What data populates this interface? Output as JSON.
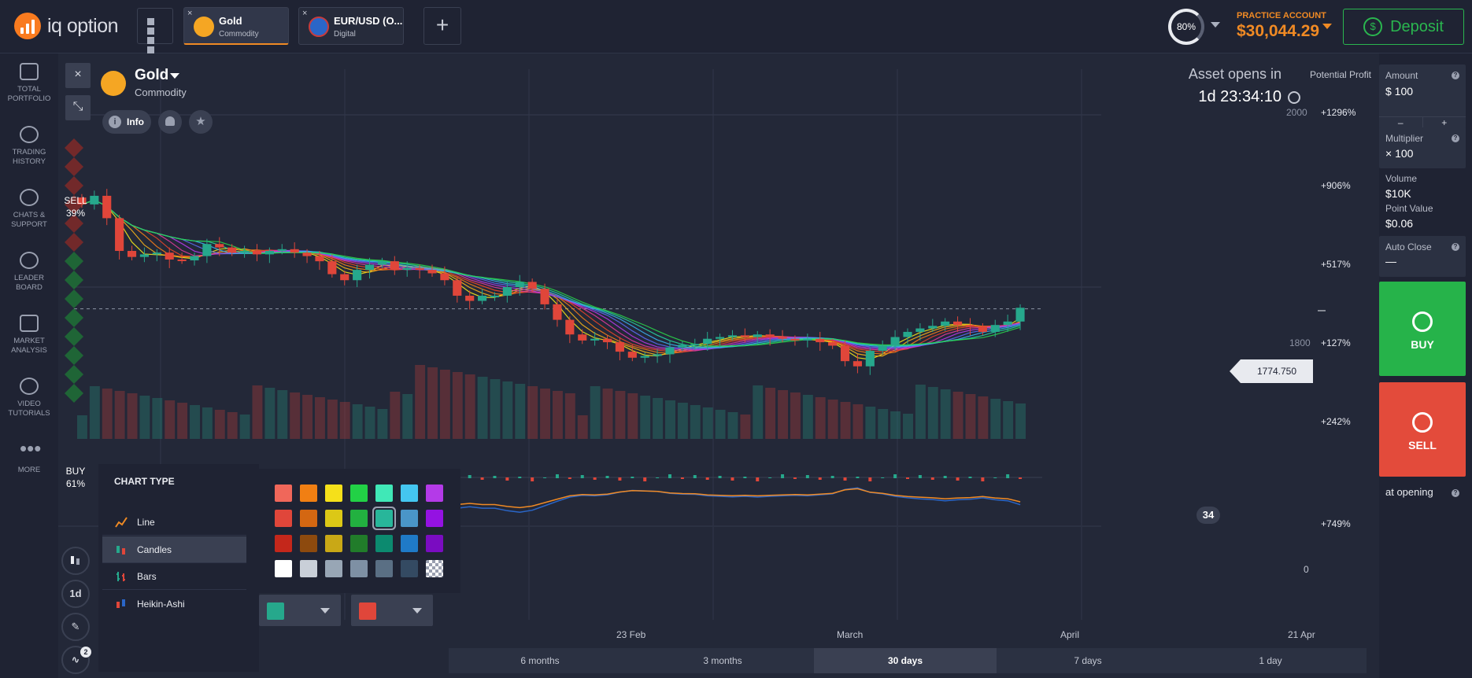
{
  "brand": {
    "name": "iq option"
  },
  "tabs": [
    {
      "close": "×",
      "name": "Gold",
      "sub": "Commodity",
      "icon": "gold-bars-icon"
    },
    {
      "close": "×",
      "name": "EUR/USD (O...",
      "sub": "Digital",
      "icon": "eurusd-flag-icon"
    }
  ],
  "header": {
    "add_tab": "+",
    "gauge_value": "80%",
    "account_label": "PRACTICE ACCOUNT",
    "account_balance": "$30,044.29",
    "deposit_label": "Deposit"
  },
  "nav": [
    {
      "label": "TOTAL PORTFOLIO",
      "icon": "briefcase-icon"
    },
    {
      "label": "TRADING HISTORY",
      "icon": "history-icon"
    },
    {
      "label": "CHATS & SUPPORT",
      "icon": "chat-icon"
    },
    {
      "label": "LEADER BOARD",
      "icon": "trophy-icon"
    },
    {
      "label": "MARKET ANALYSIS",
      "icon": "news-icon"
    },
    {
      "label": "VIDEO TUTORIALS",
      "icon": "play-icon"
    },
    {
      "label": "MORE",
      "icon": "more-dots-icon"
    }
  ],
  "asset": {
    "name": "Gold",
    "category": "Commodity",
    "info_label": "Info",
    "opens_label": "Asset opens in",
    "opens_time": "1d 23:34:10",
    "potential_profit": "Potential Profit"
  },
  "sentiment": {
    "sell_label": "SELL",
    "sell_pct": "39%",
    "buy_label": "BUY",
    "buy_pct": "61%"
  },
  "chart_data": {
    "type": "candlestick",
    "price_ticks": [
      "2000",
      "1800"
    ],
    "current_price": "1774.750",
    "profit_labels": [
      "+1296%",
      "+906%",
      "+517%",
      "+127%",
      "+242%",
      "+749%"
    ],
    "volume_badge": "34",
    "indicator_zero": "0",
    "time_labels": [
      "23 Feb",
      "March",
      "April",
      "21 Apr"
    ],
    "closes": [
      1896,
      1906,
      1880,
      1842,
      1835,
      1838,
      1840,
      1832,
      1831,
      1836,
      1850,
      1846,
      1840,
      1842,
      1838,
      1842,
      1844,
      1840,
      1836,
      1830,
      1815,
      1808,
      1820,
      1826,
      1830,
      1820,
      1822,
      1820,
      1816,
      1808,
      1790,
      1784,
      1790,
      1790,
      1800,
      1806,
      1798,
      1780,
      1762,
      1745,
      1738,
      1740,
      1736,
      1725,
      1718,
      1720,
      1722,
      1730,
      1733,
      1734,
      1740,
      1742,
      1744,
      1742,
      1745,
      1742,
      1740,
      1738,
      1740,
      1736,
      1732,
      1714,
      1708,
      1726,
      1732,
      1742,
      1748,
      1752,
      1755,
      1760,
      1756,
      1754,
      1748,
      1756,
      1760,
      1776
    ]
  },
  "timeframes": [
    "6 months",
    "3 months",
    "30 days",
    "7 days",
    "1 day"
  ],
  "timeframe_active": "30 days",
  "chart_type_menu": {
    "title": "CHART TYPE",
    "items": [
      "Line",
      "Candles",
      "Bars",
      "Heikin-Ashi"
    ],
    "active": "Candles"
  },
  "palette": [
    [
      "#f0675a",
      "#f17f13",
      "#f5e01a",
      "#22d146",
      "#40e8b7",
      "#44c6f0",
      "#b43ae8"
    ],
    [
      "#e0463a",
      "#d46712",
      "#dcc816",
      "#22b140",
      "#28b69a",
      "#4a95c8",
      "#9412e2"
    ],
    [
      "#c4271b",
      "#8d4a0e",
      "#c9a816",
      "#217c2a",
      "#0c8a6f",
      "#1f7ac7",
      "#7a0cc1"
    ],
    [
      "#ffffff",
      "#c9cfd8",
      "#98a6b5",
      "#7e90a4",
      "#5a6f84",
      "#344a62",
      "checker"
    ]
  ],
  "up_color": "#26a88c",
  "down_color": "#e0463a",
  "tools": {
    "interval": "1d",
    "indicator_count": "2"
  },
  "trade": {
    "amount_label": "Amount",
    "amount_value": "$  100",
    "minus": "–",
    "plus": "+",
    "multiplier_label": "Multiplier",
    "multiplier_value": "× 100",
    "volume_label": "Volume",
    "volume_value": "$10K",
    "point_value_label": "Point Value",
    "point_value": "$0.06",
    "auto_close_label": "Auto Close",
    "auto_close_value": "—",
    "buy_label": "BUY",
    "sell_label": "SELL",
    "at_opening": "at opening"
  }
}
